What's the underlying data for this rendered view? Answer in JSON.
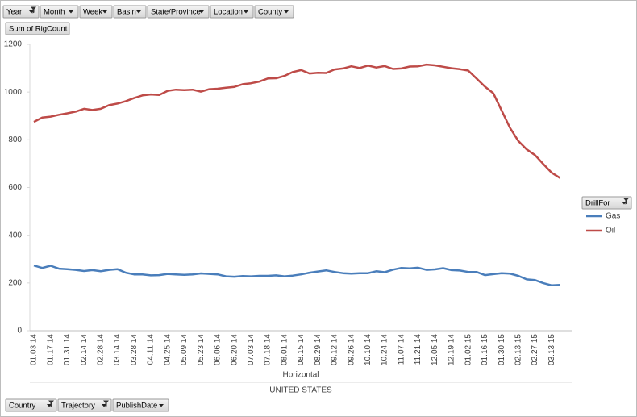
{
  "field_buttons": {
    "filters": [
      "Year",
      "Month",
      "Week",
      "Basin",
      "State/Province",
      "Location",
      "County"
    ],
    "value": "Sum of RigCount",
    "axis_fields": [
      "Country",
      "Trajectory",
      "PublishDate"
    ],
    "legend_field": "DrillFor"
  },
  "chart_data": {
    "type": "line",
    "categories": [
      "01.03.14",
      null,
      "01.17.14",
      null,
      "01.31.14",
      null,
      "02.14.14",
      null,
      "02.28.14",
      null,
      "03.14.14",
      null,
      "03.28.14",
      null,
      "04.11.14",
      null,
      "04.25.14",
      null,
      "05.09.14",
      null,
      "05.23.14",
      null,
      "06.06.14",
      null,
      "06.20.14",
      null,
      "07.03.14",
      null,
      "07.18.14",
      null,
      "08.01.14",
      null,
      "08.15.14",
      null,
      "08.29.14",
      null,
      "09.12.14",
      null,
      "09.26.14",
      null,
      "10.10.14",
      null,
      "10.24.14",
      null,
      "11.07.14",
      null,
      "11.21.14",
      null,
      "12.05.14",
      null,
      "12.19.14",
      null,
      "01.02.15",
      null,
      "01.16.15",
      null,
      "01.30.15",
      null,
      "02.13.15",
      null,
      "02.27.15",
      null,
      "03.13.15",
      null
    ],
    "x_axis_label": "Horizontal",
    "x_group_label": "UNITED STATES",
    "series": [
      {
        "name": "Gas",
        "color": "#4a7ebb",
        "values": [
          273,
          263,
          272,
          260,
          258,
          255,
          250,
          254,
          249,
          255,
          258,
          243,
          236,
          236,
          232,
          233,
          238,
          236,
          234,
          236,
          240,
          238,
          236,
          228,
          226,
          229,
          228,
          230,
          230,
          232,
          228,
          231,
          236,
          243,
          248,
          253,
          246,
          241,
          239,
          241,
          241,
          249,
          245,
          256,
          263,
          261,
          264,
          255,
          257,
          262,
          254,
          252,
          246,
          246,
          233,
          237,
          241,
          239,
          230,
          215,
          212,
          199,
          190,
          192
        ]
      },
      {
        "name": "Oil",
        "color": "#be4b48",
        "values": [
          875,
          893,
          897,
          905,
          911,
          918,
          930,
          925,
          930,
          945,
          952,
          962,
          975,
          986,
          990,
          988,
          1005,
          1010,
          1008,
          1010,
          1002,
          1012,
          1014,
          1018,
          1022,
          1033,
          1037,
          1044,
          1057,
          1058,
          1068,
          1084,
          1092,
          1078,
          1081,
          1080,
          1095,
          1099,
          1108,
          1101,
          1111,
          1103,
          1109,
          1097,
          1099,
          1107,
          1108,
          1115,
          1112,
          1106,
          1100,
          1096,
          1090,
          1057,
          1023,
          995,
          923,
          850,
          795,
          760,
          736,
          698,
          662,
          640
        ]
      }
    ],
    "ylim": [
      0,
      1200
    ],
    "yticks": [
      0,
      200,
      400,
      600,
      800,
      1000,
      1200
    ],
    "grid": false
  }
}
